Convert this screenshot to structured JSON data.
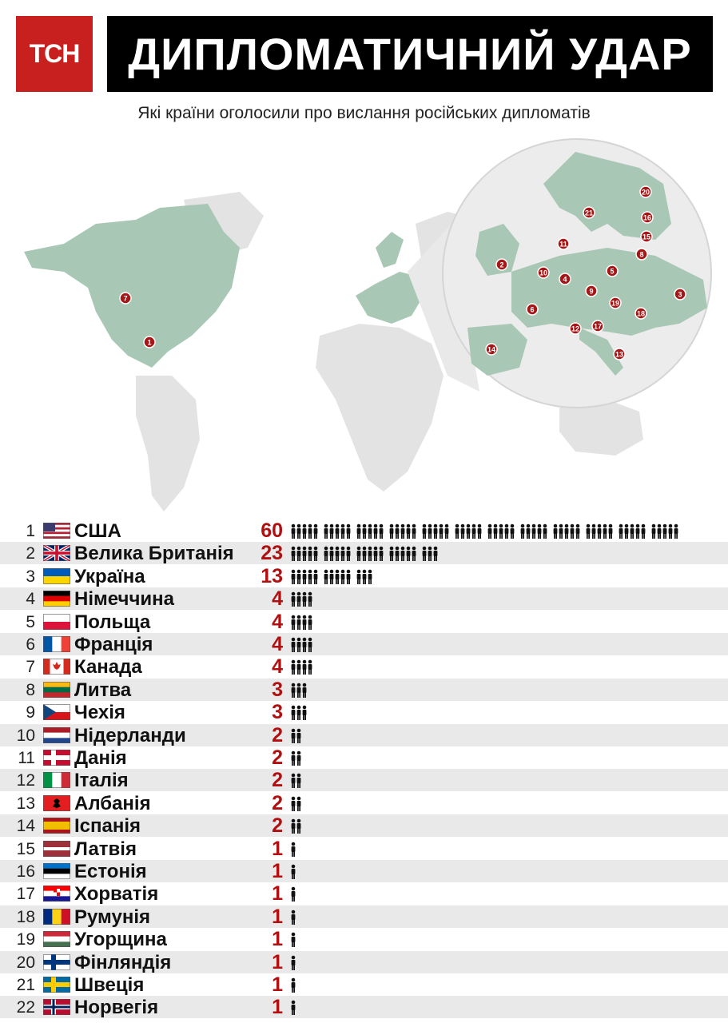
{
  "header": {
    "logo_text": "ТСН",
    "title": "ДИПЛОМАТИЧНИЙ УДАР",
    "subtitle": "Які країни оголосили про вислання російських дипломатів"
  },
  "colors": {
    "accent": "#c8201e",
    "value_red": "#b01010",
    "land_highlight": "#a9c7b5",
    "land_other": "#e3e3e3",
    "row_alt": "#e9e9e9"
  },
  "map": {
    "inset_markers": [
      "20",
      "21",
      "16",
      "15",
      "11",
      "8",
      "2",
      "10",
      "4",
      "5",
      "9",
      "3",
      "19",
      "18",
      "6",
      "12",
      "17",
      "14",
      "13"
    ],
    "world_markers": [
      "7",
      "1"
    ]
  },
  "chart_data": {
    "type": "bar",
    "title": "ДИПЛОМАТИЧНИЙ УДАР",
    "subtitle": "Які країни оголосили про вислання російських дипломатів",
    "categories": [
      "США",
      "Велика Британія",
      "Україна",
      "Німеччина",
      "Польща",
      "Франція",
      "Канада",
      "Литва",
      "Чехія",
      "Нідерланди",
      "Данія",
      "Італія",
      "Албанія",
      "Іспанія",
      "Латвія",
      "Естонія",
      "Хорватія",
      "Румунія",
      "Угорщина",
      "Фінляндія",
      "Швеція",
      "Норвегія"
    ],
    "ranks": [
      "1",
      "2",
      "3",
      "4",
      "5",
      "6",
      "7",
      "8",
      "9",
      "10",
      "11",
      "12",
      "13",
      "14",
      "15",
      "16",
      "17",
      "18",
      "19",
      "20",
      "21",
      "22"
    ],
    "values": [
      60,
      23,
      13,
      4,
      4,
      4,
      4,
      3,
      3,
      2,
      2,
      2,
      2,
      2,
      1,
      1,
      1,
      1,
      1,
      1,
      1,
      1
    ],
    "flags": [
      "us",
      "gb",
      "ua",
      "de",
      "pl",
      "fr",
      "ca",
      "lt",
      "cz",
      "nl",
      "dk",
      "it",
      "al",
      "es",
      "lv",
      "ee",
      "hr",
      "ro",
      "hu",
      "fi",
      "se",
      "no"
    ]
  }
}
